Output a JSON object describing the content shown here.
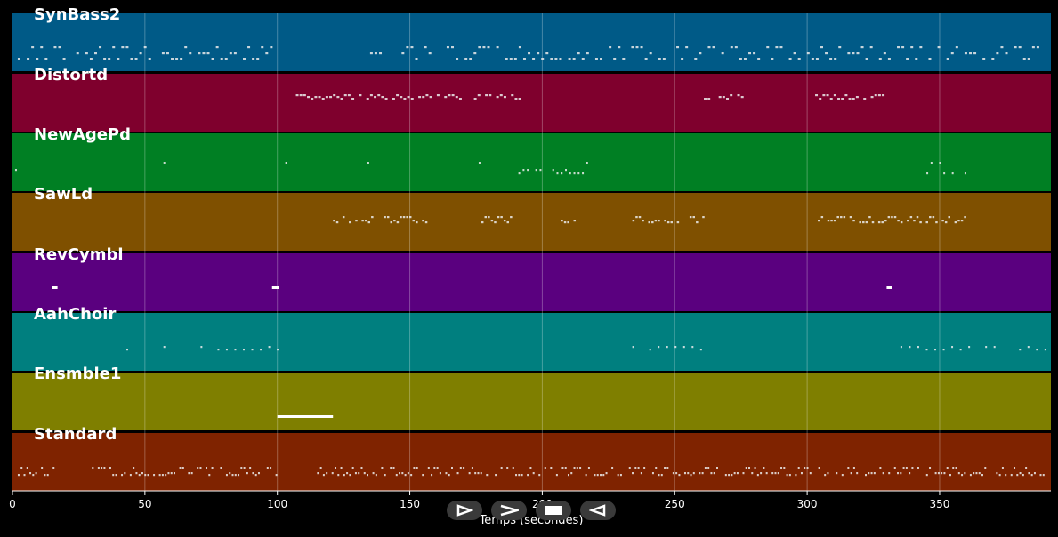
{
  "transport": {
    "axis_label": "Temps (secondes)",
    "ticks": [
      "0",
      "50",
      "100",
      "150",
      "200",
      "250",
      "300",
      "350"
    ],
    "buttons": [
      "play",
      "fast-forward",
      "stop",
      "rewind"
    ]
  },
  "tracks": [
    {
      "name": "SynBass2",
      "color": "#005a87"
    },
    {
      "name": "Distortd",
      "color": "#7f002d"
    },
    {
      "name": "NewAgePd",
      "color": "#007f23"
    },
    {
      "name": "SawLd",
      "color": "#7f5000"
    },
    {
      "name": "RevCymbl",
      "color": "#5a007f"
    },
    {
      "name": "AahChoir",
      "color": "#007f7f"
    },
    {
      "name": "Ensmble1",
      "color": "#7f7f00"
    },
    {
      "name": "Standard",
      "color": "#7f2300"
    }
  ]
}
